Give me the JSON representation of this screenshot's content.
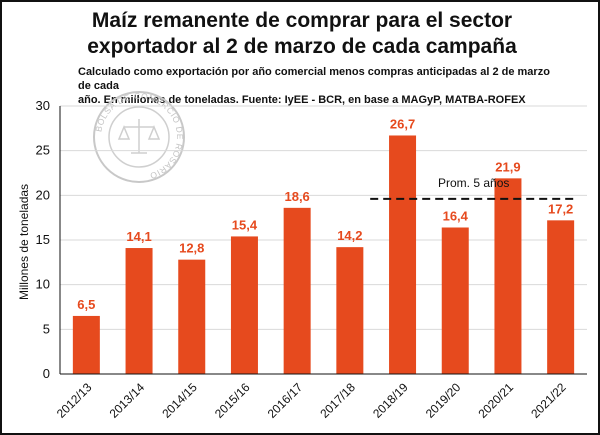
{
  "header": {
    "title_line1": "Maíz remanente de comprar para el sector",
    "title_line2": "exportador al 2 de marzo de cada campaña",
    "subtitle_line1": "Calculado como exportación por año comercial menos compras anticipadas al 2 de marzo de cada",
    "subtitle_line2": "año. En millones de toneladas. Fuente: IyEE - BCR, en base a MAGyP, MATBA-ROFEX"
  },
  "watermark": {
    "text": "BOLSA DE COMERCIO DE ROSARIO"
  },
  "colors": {
    "bar": "#e64a1e",
    "label": "#e64a1e",
    "axis": "#111111",
    "grid": "#d9d9d9",
    "average": "#111111"
  },
  "chart_data": {
    "type": "bar",
    "categories": [
      "2012/13",
      "2013/14",
      "2014/15",
      "2015/16",
      "2016/17",
      "2017/18",
      "2018/19",
      "2019/20",
      "2020/21",
      "2021/22"
    ],
    "values": [
      6.5,
      14.1,
      12.8,
      15.4,
      18.6,
      14.2,
      26.7,
      16.4,
      21.9,
      17.2
    ],
    "value_labels": [
      "6,5",
      "14,1",
      "12,8",
      "15,4",
      "18,6",
      "14,2",
      "26,7",
      "16,4",
      "21,9",
      "17,2"
    ],
    "ylabel": "Millones de toneladas",
    "ylim": [
      0,
      30
    ],
    "yticks": [
      0,
      5,
      10,
      15,
      20,
      25,
      30
    ],
    "grid": true,
    "average": {
      "label": "Prom. 5 años",
      "value": 19.6,
      "from_category": 6,
      "to_category": 9
    }
  }
}
